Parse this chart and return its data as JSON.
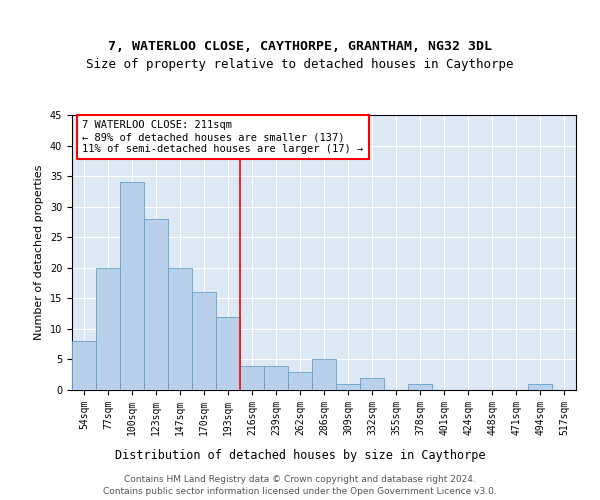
{
  "title1": "7, WATERLOO CLOSE, CAYTHORPE, GRANTHAM, NG32 3DL",
  "title2": "Size of property relative to detached houses in Caythorpe",
  "xlabel": "Distribution of detached houses by size in Caythorpe",
  "ylabel": "Number of detached properties",
  "categories": [
    "54sqm",
    "77sqm",
    "100sqm",
    "123sqm",
    "147sqm",
    "170sqm",
    "193sqm",
    "216sqm",
    "239sqm",
    "262sqm",
    "286sqm",
    "309sqm",
    "332sqm",
    "355sqm",
    "378sqm",
    "401sqm",
    "424sqm",
    "448sqm",
    "471sqm",
    "494sqm",
    "517sqm"
  ],
  "values": [
    8,
    20,
    34,
    28,
    20,
    16,
    12,
    4,
    4,
    3,
    5,
    1,
    2,
    0,
    1,
    0,
    0,
    0,
    0,
    1,
    0
  ],
  "bar_color": "#b8d0ea",
  "bar_edge_color": "#6a9fc8",
  "vline_x": 6.5,
  "vline_color": "red",
  "annotation_text": "7 WATERLOO CLOSE: 211sqm\n← 89% of detached houses are smaller (137)\n11% of semi-detached houses are larger (17) →",
  "annotation_box_color": "white",
  "annotation_box_edge": "red",
  "ylim": [
    0,
    45
  ],
  "yticks": [
    0,
    5,
    10,
    15,
    20,
    25,
    30,
    35,
    40,
    45
  ],
  "footer1": "Contains HM Land Registry data © Crown copyright and database right 2024.",
  "footer2": "Contains public sector information licensed under the Open Government Licence v3.0.",
  "background_color": "#dde8f5",
  "fig_background": "#ffffff",
  "title1_fontsize": 9.5,
  "title2_fontsize": 9,
  "xlabel_fontsize": 8.5,
  "ylabel_fontsize": 8,
  "tick_fontsize": 7,
  "annotation_fontsize": 7.5,
  "footer_fontsize": 6.5
}
